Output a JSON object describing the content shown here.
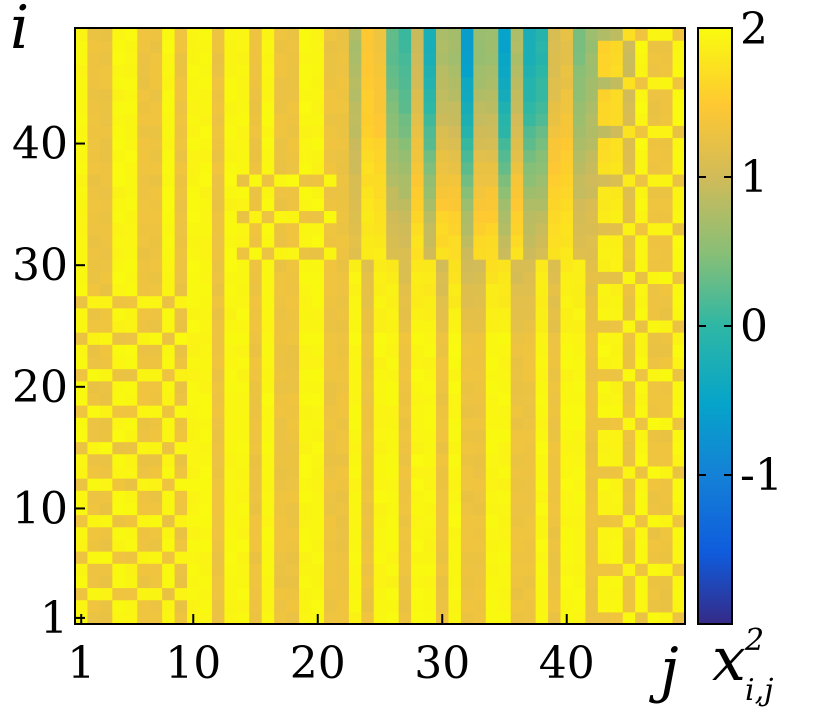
{
  "chart_data": {
    "type": "heatmap",
    "xlabel": "j",
    "ylabel": "i",
    "colorbar_label": {
      "base": "x",
      "sup": "2",
      "sub": "i,j"
    },
    "x_range": [
      1,
      49
    ],
    "y_range": [
      1,
      49
    ],
    "x_ticks": [
      "1",
      "10",
      "20",
      "30",
      "40"
    ],
    "x_tick_values": [
      1,
      10,
      20,
      30,
      40
    ],
    "y_ticks": [
      "1",
      "10",
      "20",
      "30",
      "40"
    ],
    "y_tick_values": [
      1,
      10,
      20,
      30,
      40
    ],
    "colorbar_ticks": [
      "2",
      "1",
      "0",
      "-1"
    ],
    "colorbar_tick_values": [
      2,
      1,
      0,
      -1
    ],
    "color_range": [
      -2,
      2
    ],
    "colormap": "parula",
    "grid": false,
    "description_values": {
      "dominant_high": 1.95,
      "dominant_low": 1.3,
      "upper_region_min": -0.3
    }
  }
}
